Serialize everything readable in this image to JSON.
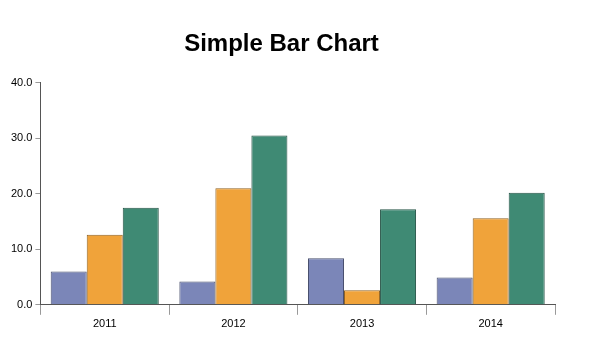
{
  "chart_data": {
    "type": "bar",
    "title": "Simple Bar Chart",
    "categories": [
      "2011",
      "2012",
      "2013",
      "2014"
    ],
    "series": [
      {
        "color": "#7b86b8",
        "values": [
          6.0,
          4.2,
          8.4,
          4.9
        ]
      },
      {
        "color": "#f0a33a",
        "values": [
          12.6,
          21.0,
          2.6,
          15.6
        ]
      },
      {
        "color": "#3f8a74",
        "values": [
          17.5,
          30.5,
          17.2,
          20.2
        ]
      }
    ],
    "ylim": [
      0,
      40
    ],
    "yticks": [
      {
        "value": 0,
        "label": "0.0"
      },
      {
        "value": 10,
        "label": "10.0"
      },
      {
        "value": 20,
        "label": "20.0"
      },
      {
        "value": 30,
        "label": "30.0"
      },
      {
        "value": 40,
        "label": "40.0"
      }
    ],
    "grid": false
  }
}
